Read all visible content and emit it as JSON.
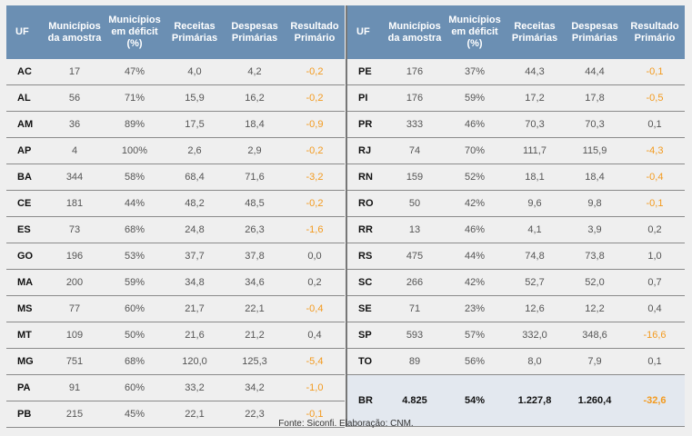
{
  "headers": [
    "UF",
    "Municípios da amostra",
    "Municípios em déficit (%)",
    "Receitas Primárias",
    "Despesas Primárias",
    "Resultado Primário"
  ],
  "left_rows": [
    [
      "AC",
      "17",
      "47%",
      "4,0",
      "4,2",
      "-0,2"
    ],
    [
      "AL",
      "56",
      "71%",
      "15,9",
      "16,2",
      "-0,2"
    ],
    [
      "AM",
      "36",
      "89%",
      "17,5",
      "18,4",
      "-0,9"
    ],
    [
      "AP",
      "4",
      "100%",
      "2,6",
      "2,9",
      "-0,2"
    ],
    [
      "BA",
      "344",
      "58%",
      "68,4",
      "71,6",
      "-3,2"
    ],
    [
      "CE",
      "181",
      "44%",
      "48,2",
      "48,5",
      "-0,2"
    ],
    [
      "ES",
      "73",
      "68%",
      "24,8",
      "26,3",
      "-1,6"
    ],
    [
      "GO",
      "196",
      "53%",
      "37,7",
      "37,8",
      "0,0"
    ],
    [
      "MA",
      "200",
      "59%",
      "34,8",
      "34,6",
      "0,2"
    ],
    [
      "MS",
      "77",
      "60%",
      "21,7",
      "22,1",
      "-0,4"
    ],
    [
      "MT",
      "109",
      "50%",
      "21,6",
      "21,2",
      "0,4"
    ],
    [
      "MG",
      "751",
      "68%",
      "120,0",
      "125,3",
      "-5,4"
    ],
    [
      "PA",
      "91",
      "60%",
      "33,2",
      "34,2",
      "-1,0"
    ],
    [
      "PB",
      "215",
      "45%",
      "22,1",
      "22,3",
      "-0,1"
    ]
  ],
  "right_rows": [
    [
      "PE",
      "176",
      "37%",
      "44,3",
      "44,4",
      "-0,1"
    ],
    [
      "PI",
      "176",
      "59%",
      "17,2",
      "17,8",
      "-0,5"
    ],
    [
      "PR",
      "333",
      "46%",
      "70,3",
      "70,3",
      "0,1"
    ],
    [
      "RJ",
      "74",
      "70%",
      "111,7",
      "115,9",
      "-4,3"
    ],
    [
      "RN",
      "159",
      "52%",
      "18,1",
      "18,4",
      "-0,4"
    ],
    [
      "RO",
      "50",
      "42%",
      "9,6",
      "9,8",
      "-0,1"
    ],
    [
      "RR",
      "13",
      "46%",
      "4,1",
      "3,9",
      "0,2"
    ],
    [
      "RS",
      "475",
      "44%",
      "74,8",
      "73,8",
      "1,0"
    ],
    [
      "SC",
      "266",
      "42%",
      "52,7",
      "52,0",
      "0,7"
    ],
    [
      "SE",
      "71",
      "23%",
      "12,6",
      "12,2",
      "0,4"
    ],
    [
      "SP",
      "593",
      "57%",
      "332,0",
      "348,6",
      "-16,6"
    ],
    [
      "TO",
      "89",
      "56%",
      "8,0",
      "7,9",
      "0,1"
    ]
  ],
  "total_row": [
    "BR",
    "4.825",
    "54%",
    "1.227,8",
    "1.260,4",
    "-32,6"
  ],
  "caption": "Fonte: Siconfi. Elaboração: CNM.",
  "colors": {
    "header_bg": "#6b8fb3",
    "negative": "#f39a1e",
    "total_bg": "#e3e8ef"
  }
}
